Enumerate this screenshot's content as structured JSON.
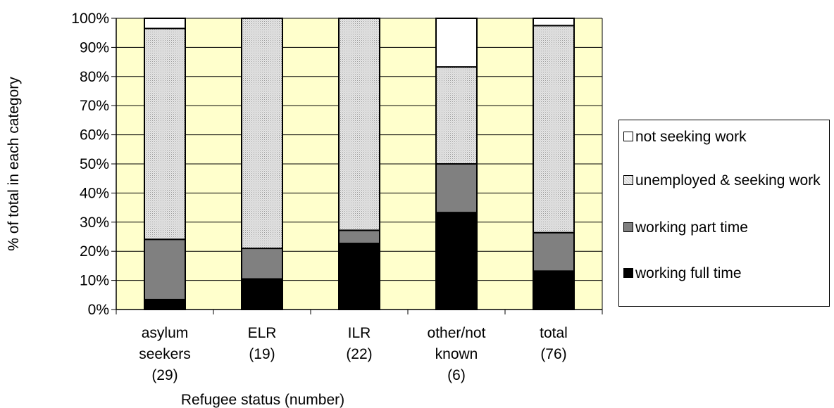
{
  "chart_data": {
    "type": "bar",
    "stacked": true,
    "percent_stacked": true,
    "title": "",
    "xlabel": "Refugee status (number)",
    "ylabel": "% of total in each category",
    "ylim": [
      0,
      100
    ],
    "yticks": [
      "0%",
      "10%",
      "20%",
      "30%",
      "40%",
      "50%",
      "60%",
      "70%",
      "80%",
      "90%",
      "100%"
    ],
    "categories": [
      [
        "asylum",
        "seekers",
        "(29)"
      ],
      [
        "ELR",
        "(19)"
      ],
      [
        "ILR",
        "(22)"
      ],
      [
        "other/not",
        "known",
        "(6)"
      ],
      [
        "total",
        "(76)"
      ]
    ],
    "series": [
      {
        "name": "working full time",
        "values": [
          3.4,
          10.5,
          22.7,
          33.3,
          13.2
        ],
        "color": "#000000"
      },
      {
        "name": "working part time",
        "values": [
          20.7,
          10.5,
          4.5,
          16.7,
          13.2
        ],
        "color": "#808080"
      },
      {
        "name": "unemployed & seeking work",
        "values": [
          72.4,
          79.0,
          72.8,
          33.3,
          71.1
        ],
        "color": "#dcdcdc",
        "pattern": "dotted"
      },
      {
        "name": "not seeking work",
        "values": [
          3.5,
          0,
          0,
          16.7,
          2.5
        ],
        "color": "#ffffff"
      }
    ],
    "legend_placement": "right",
    "legend_order": [
      "not seeking work",
      "unemployed & seeking work",
      "working part time",
      "working full time"
    ],
    "plot_background": "#ffffcc",
    "grid": true
  }
}
